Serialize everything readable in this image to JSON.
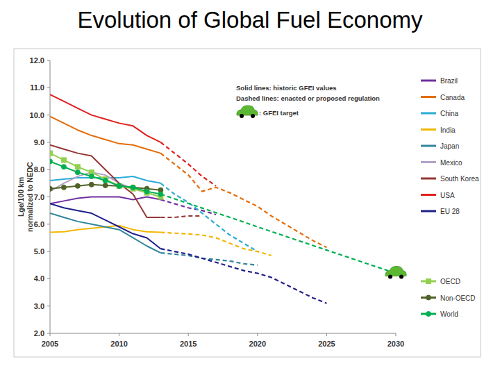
{
  "chart_data": {
    "type": "line",
    "title": "Evolution of Global Fuel Economy",
    "ylabel": [
      "Lge/100 km",
      "normalized to NEDC"
    ],
    "annotations": [
      "Solid lines: historic GFEI values",
      "Dashed lines: enacted or proposed regulation"
    ],
    "target": {
      "x": 2030,
      "value": 4.2,
      "label": ": GFEI target"
    },
    "x": [
      2005,
      2006,
      2007,
      2008,
      2009,
      2010,
      2011,
      2012,
      2013,
      2014,
      2015,
      2016,
      2017,
      2018,
      2019,
      2020,
      2021,
      2022,
      2023,
      2024,
      2025,
      2026,
      2027,
      2028,
      2029,
      2030
    ],
    "xlim": [
      2005,
      2030
    ],
    "xticks": [
      2005,
      2010,
      2015,
      2020,
      2025,
      2030
    ],
    "ylim": [
      2,
      12
    ],
    "yticks": [
      {
        "value": 2,
        "label": "2.0"
      },
      {
        "value": 3,
        "label": "3.0"
      },
      {
        "value": 4,
        "label": "4.0"
      },
      {
        "value": 5,
        "label": "5.0"
      },
      {
        "value": 6,
        "label": "6.0"
      },
      {
        "value": 7,
        "label": "7.0"
      },
      {
        "value": 8,
        "label": "8.0"
      },
      {
        "value": 9,
        "label": "9.0"
      },
      {
        "value": 10,
        "label": "10.0"
      },
      {
        "value": 11,
        "label": "11.0"
      },
      {
        "value": 12,
        "label": "12.0"
      }
    ],
    "grid": false,
    "legend": "right",
    "series": [
      {
        "name": "Brazil",
        "color": "#7030a0",
        "line_style": "solid",
        "values": [
          6.75,
          6.85,
          6.95,
          7.0,
          7.0,
          7.0,
          6.9,
          7.0,
          6.9,
          null,
          null,
          null,
          null,
          null,
          null,
          null,
          null,
          null,
          null,
          null,
          null,
          null,
          null,
          null,
          null,
          null
        ]
      },
      {
        "name": "Canada",
        "color": "#e46c0a",
        "line_style": "solid",
        "values": [
          9.95,
          9.7,
          9.45,
          9.25,
          9.1,
          8.95,
          8.9,
          8.75,
          8.6,
          null,
          null,
          null,
          null,
          null,
          null,
          null,
          null,
          null,
          null,
          null,
          null,
          null,
          null,
          null,
          null,
          null
        ]
      },
      {
        "name": "China",
        "color": "#2aacd6",
        "line_style": "solid",
        "values": [
          7.6,
          7.65,
          7.7,
          7.7,
          7.7,
          7.7,
          7.75,
          7.6,
          7.5,
          null,
          null,
          null,
          null,
          null,
          null,
          null,
          null,
          null,
          null,
          null,
          null,
          null,
          null,
          null,
          null,
          null
        ]
      },
      {
        "name": "India",
        "color": "#f2b705",
        "line_style": "solid",
        "values": [
          5.7,
          5.72,
          5.8,
          5.85,
          5.9,
          5.95,
          5.8,
          5.72,
          5.7,
          null,
          null,
          null,
          null,
          null,
          null,
          null,
          null,
          null,
          null,
          null,
          null,
          null,
          null,
          null,
          null,
          null
        ]
      },
      {
        "name": "Japan",
        "color": "#31859c",
        "line_style": "solid",
        "values": [
          6.4,
          6.25,
          6.1,
          6.0,
          5.9,
          5.8,
          5.5,
          5.2,
          4.95,
          null,
          null,
          null,
          null,
          null,
          null,
          null,
          null,
          null,
          null,
          null,
          null,
          null,
          null,
          null,
          null,
          null
        ]
      },
      {
        "name": "Mexico",
        "color": "#b3a2c7",
        "line_style": "solid",
        "values": [
          7.2,
          7.5,
          7.75,
          7.9,
          7.8,
          7.5,
          7.3,
          7.15,
          7.0,
          null,
          null,
          null,
          null,
          null,
          null,
          null,
          null,
          null,
          null,
          null,
          null,
          null,
          null,
          null,
          null,
          null
        ]
      },
      {
        "name": "South Korea",
        "color": "#953735",
        "line_style": "solid",
        "values": [
          8.9,
          8.75,
          8.6,
          8.5,
          8.0,
          7.5,
          7.1,
          6.25,
          6.25,
          null,
          null,
          null,
          null,
          null,
          null,
          null,
          null,
          null,
          null,
          null,
          null,
          null,
          null,
          null,
          null,
          null
        ]
      },
      {
        "name": "USA",
        "color": "#e0201e",
        "line_style": "solid",
        "values": [
          10.75,
          10.5,
          10.25,
          10.0,
          9.85,
          9.7,
          9.6,
          9.25,
          9.0,
          null,
          null,
          null,
          null,
          null,
          null,
          null,
          null,
          null,
          null,
          null,
          null,
          null,
          null,
          null,
          null,
          null
        ]
      },
      {
        "name": "EU 28",
        "color": "#1f1f8a",
        "line_style": "solid",
        "values": [
          6.75,
          6.6,
          6.5,
          6.4,
          6.15,
          5.9,
          5.65,
          5.5,
          5.1,
          null,
          null,
          null,
          null,
          null,
          null,
          null,
          null,
          null,
          null,
          null,
          null,
          null,
          null,
          null,
          null,
          null
        ]
      },
      {
        "name": "OECD",
        "color": "#92d050",
        "line_style": "solid",
        "marker": "square",
        "values": [
          8.6,
          8.35,
          8.1,
          7.9,
          7.65,
          7.4,
          7.3,
          7.15,
          7.0,
          null,
          null,
          null,
          null,
          null,
          null,
          null,
          null,
          null,
          null,
          null,
          null,
          null,
          null,
          null,
          null,
          null
        ]
      },
      {
        "name": "Non-OECD",
        "color": "#4f6228",
        "line_style": "solid",
        "marker": "circle",
        "values": [
          7.3,
          7.35,
          7.4,
          7.45,
          7.42,
          7.4,
          7.35,
          7.3,
          7.25,
          null,
          null,
          null,
          null,
          null,
          null,
          null,
          null,
          null,
          null,
          null,
          null,
          null,
          null,
          null,
          null,
          null
        ]
      },
      {
        "name": "World",
        "color": "#00b050",
        "line_style": "solid",
        "marker": "circle",
        "values": [
          8.3,
          8.1,
          7.9,
          7.75,
          7.6,
          7.4,
          7.35,
          7.2,
          7.1,
          null,
          null,
          null,
          null,
          null,
          null,
          null,
          null,
          null,
          null,
          null,
          null,
          null,
          null,
          null,
          null,
          null
        ]
      },
      {
        "color": "#7030a0",
        "line_style": "dashed",
        "values": [
          null,
          null,
          null,
          null,
          null,
          null,
          null,
          null,
          6.9,
          6.75,
          6.6,
          6.5,
          6.35,
          null,
          null,
          null,
          null,
          null,
          null,
          null,
          null,
          null,
          null,
          null,
          null,
          null
        ]
      },
      {
        "color": "#e46c0a",
        "line_style": "dashed",
        "values": [
          null,
          null,
          null,
          null,
          null,
          null,
          null,
          null,
          8.6,
          8.2,
          7.8,
          7.2,
          7.35,
          7.15,
          6.9,
          6.65,
          6.3,
          6.0,
          5.7,
          5.4,
          5.15,
          null,
          null,
          null,
          null,
          null
        ]
      },
      {
        "color": "#2aacd6",
        "line_style": "dashed",
        "values": [
          null,
          null,
          null,
          null,
          null,
          null,
          null,
          null,
          7.5,
          7.1,
          6.8,
          6.4,
          6.0,
          5.6,
          5.3,
          5.0,
          null,
          null,
          null,
          null,
          null,
          null,
          null,
          null,
          null,
          null
        ]
      },
      {
        "color": "#f2b705",
        "line_style": "dashed",
        "values": [
          null,
          null,
          null,
          null,
          null,
          null,
          null,
          null,
          5.7,
          5.67,
          5.64,
          5.6,
          5.5,
          5.3,
          5.1,
          5.0,
          4.85,
          null,
          null,
          null,
          null,
          null,
          null,
          null,
          null,
          null
        ]
      },
      {
        "color": "#31859c",
        "line_style": "dashed",
        "values": [
          null,
          null,
          null,
          null,
          null,
          null,
          null,
          null,
          4.95,
          4.9,
          4.85,
          4.75,
          4.7,
          4.65,
          4.55,
          4.5,
          null,
          null,
          null,
          null,
          null,
          null,
          null,
          null,
          null,
          null
        ]
      },
      {
        "color": "#953735",
        "line_style": "dashed",
        "values": [
          null,
          null,
          null,
          null,
          null,
          null,
          null,
          null,
          6.25,
          6.25,
          6.3,
          6.3,
          null,
          null,
          null,
          null,
          null,
          null,
          null,
          null,
          null,
          null,
          null,
          null,
          null,
          null
        ]
      },
      {
        "color": "#e0201e",
        "line_style": "dashed",
        "values": [
          null,
          null,
          null,
          null,
          null,
          null,
          null,
          null,
          9.0,
          8.6,
          8.2,
          7.75,
          7.4,
          null,
          null,
          null,
          null,
          null,
          null,
          null,
          null,
          null,
          null,
          null,
          null,
          null
        ]
      },
      {
        "color": "#1f1f8a",
        "line_style": "dashed",
        "values": [
          null,
          null,
          null,
          null,
          null,
          null,
          null,
          null,
          5.1,
          5.0,
          4.9,
          4.75,
          4.6,
          4.45,
          4.3,
          4.2,
          4.05,
          3.8,
          3.55,
          3.3,
          3.1,
          null,
          null,
          null,
          null,
          null
        ]
      },
      {
        "color": "#00b050",
        "line_style": "dashed",
        "values": [
          null,
          null,
          null,
          null,
          null,
          null,
          null,
          null,
          7.1,
          6.93,
          6.76,
          6.59,
          6.42,
          6.25,
          6.08,
          5.9,
          5.73,
          5.56,
          5.39,
          5.22,
          5.05,
          4.88,
          4.71,
          4.54,
          4.37,
          4.2
        ]
      }
    ]
  }
}
